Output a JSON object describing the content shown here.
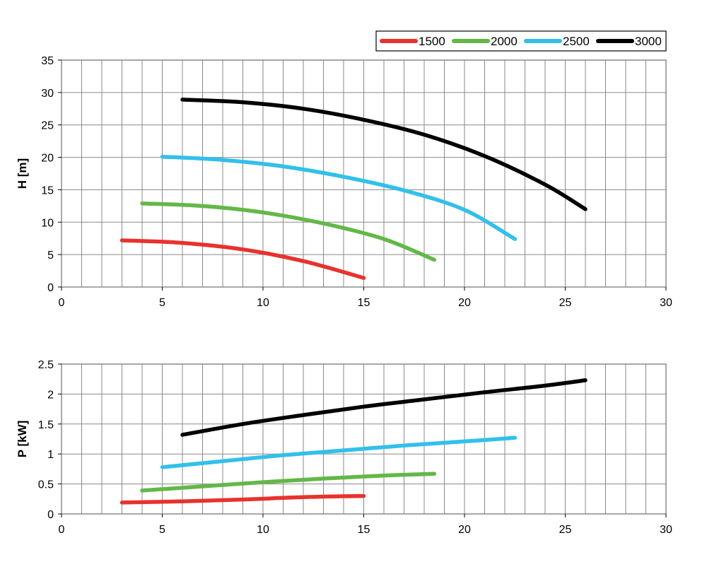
{
  "legend": [
    {
      "label": "1500",
      "color": "#e8322d"
    },
    {
      "label": "2000",
      "color": "#63b847"
    },
    {
      "label": "2500",
      "color": "#32c0ea"
    },
    {
      "label": "3000",
      "color": "#000000"
    }
  ],
  "chart_data": [
    {
      "type": "line",
      "xlabel": "",
      "ylabel": "H [m]",
      "xlim": [
        0,
        30
      ],
      "ylim": [
        0,
        35
      ],
      "xticks": [
        0,
        5,
        10,
        15,
        20,
        25,
        30
      ],
      "yticks": [
        0,
        5,
        10,
        15,
        20,
        25,
        30,
        35
      ],
      "grid": true,
      "legend_position": "top-right",
      "series": [
        {
          "name": "1500",
          "color": "#e8322d",
          "points": [
            [
              3,
              7.2
            ],
            [
              6,
              6.8
            ],
            [
              9,
              5.8
            ],
            [
              12,
              4.0
            ],
            [
              15,
              1.4
            ]
          ]
        },
        {
          "name": "2000",
          "color": "#63b847",
          "points": [
            [
              4,
              12.9
            ],
            [
              7,
              12.5
            ],
            [
              10,
              11.5
            ],
            [
              13,
              9.8
            ],
            [
              16,
              7.4
            ],
            [
              18.5,
              4.2
            ]
          ]
        },
        {
          "name": "2500",
          "color": "#32c0ea",
          "points": [
            [
              5,
              20.1
            ],
            [
              8,
              19.6
            ],
            [
              11,
              18.6
            ],
            [
              14,
              17.0
            ],
            [
              17,
              14.9
            ],
            [
              20,
              11.9
            ],
            [
              22.5,
              7.4
            ]
          ]
        },
        {
          "name": "3000",
          "color": "#000000",
          "points": [
            [
              6,
              28.9
            ],
            [
              9,
              28.5
            ],
            [
              12,
              27.5
            ],
            [
              15,
              25.8
            ],
            [
              18,
              23.5
            ],
            [
              21,
              20.2
            ],
            [
              24,
              15.8
            ],
            [
              26,
              12.0
            ]
          ]
        }
      ]
    },
    {
      "type": "line",
      "xlabel": "",
      "ylabel": "P [kW]",
      "xlim": [
        0,
        30
      ],
      "ylim": [
        0,
        2.5
      ],
      "xticks": [
        0,
        5,
        10,
        15,
        20,
        25,
        30
      ],
      "yticks": [
        0,
        0.5,
        1,
        1.5,
        2,
        2.5
      ],
      "grid": true,
      "series": [
        {
          "name": "1500",
          "color": "#e8322d",
          "points": [
            [
              3,
              0.19
            ],
            [
              6,
              0.21
            ],
            [
              9,
              0.24
            ],
            [
              12,
              0.28
            ],
            [
              15,
              0.3
            ]
          ]
        },
        {
          "name": "2000",
          "color": "#63b847",
          "points": [
            [
              4,
              0.39
            ],
            [
              7,
              0.46
            ],
            [
              10,
              0.53
            ],
            [
              13,
              0.59
            ],
            [
              16,
              0.64
            ],
            [
              18.5,
              0.67
            ]
          ]
        },
        {
          "name": "2500",
          "color": "#32c0ea",
          "points": [
            [
              5,
              0.78
            ],
            [
              8,
              0.88
            ],
            [
              11,
              0.98
            ],
            [
              14,
              1.06
            ],
            [
              17,
              1.14
            ],
            [
              20,
              1.21
            ],
            [
              22.5,
              1.27
            ]
          ]
        },
        {
          "name": "3000",
          "color": "#000000",
          "points": [
            [
              6,
              1.32
            ],
            [
              9,
              1.5
            ],
            [
              12,
              1.65
            ],
            [
              15,
              1.79
            ],
            [
              18,
              1.91
            ],
            [
              21,
              2.03
            ],
            [
              24,
              2.14
            ],
            [
              26,
              2.23
            ]
          ]
        }
      ]
    }
  ]
}
